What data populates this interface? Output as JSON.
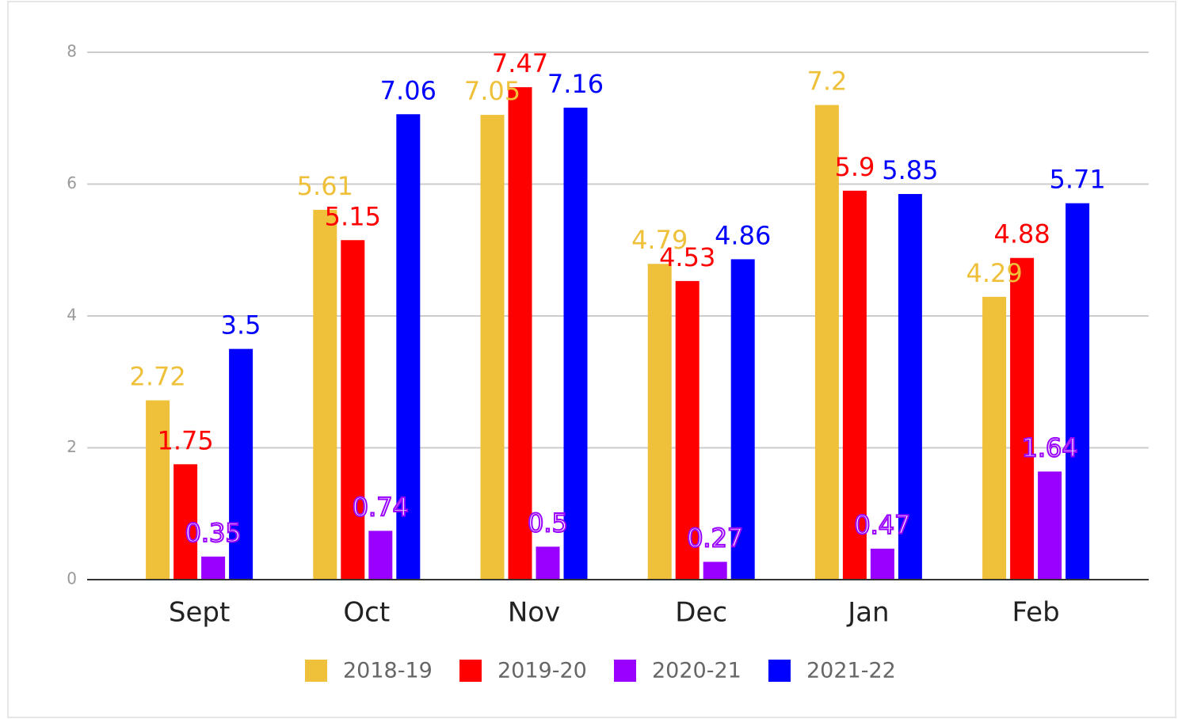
{
  "chart_data": {
    "type": "bar",
    "categories": [
      "Sept",
      "Oct",
      "Nov",
      "Dec",
      "Jan",
      "Feb"
    ],
    "series": [
      {
        "name": "2018-19",
        "color": "#efc03a",
        "values": [
          2.72,
          5.61,
          7.05,
          4.79,
          7.2,
          4.29
        ]
      },
      {
        "name": "2019-20",
        "color": "#ff0000",
        "values": [
          1.75,
          5.15,
          7.47,
          4.53,
          5.9,
          4.88
        ]
      },
      {
        "name": "2020-21",
        "color": "#9900ff",
        "values": [
          0.35,
          0.74,
          0.5,
          0.27,
          0.47,
          1.64
        ]
      },
      {
        "name": "2021-22",
        "color": "#0000ff",
        "values": [
          3.5,
          7.06,
          7.16,
          4.86,
          5.85,
          5.71
        ]
      }
    ],
    "ylim": [
      0,
      8
    ],
    "yticks": [
      0,
      2,
      4,
      6,
      8
    ],
    "grid": true,
    "legend": "bottom"
  }
}
